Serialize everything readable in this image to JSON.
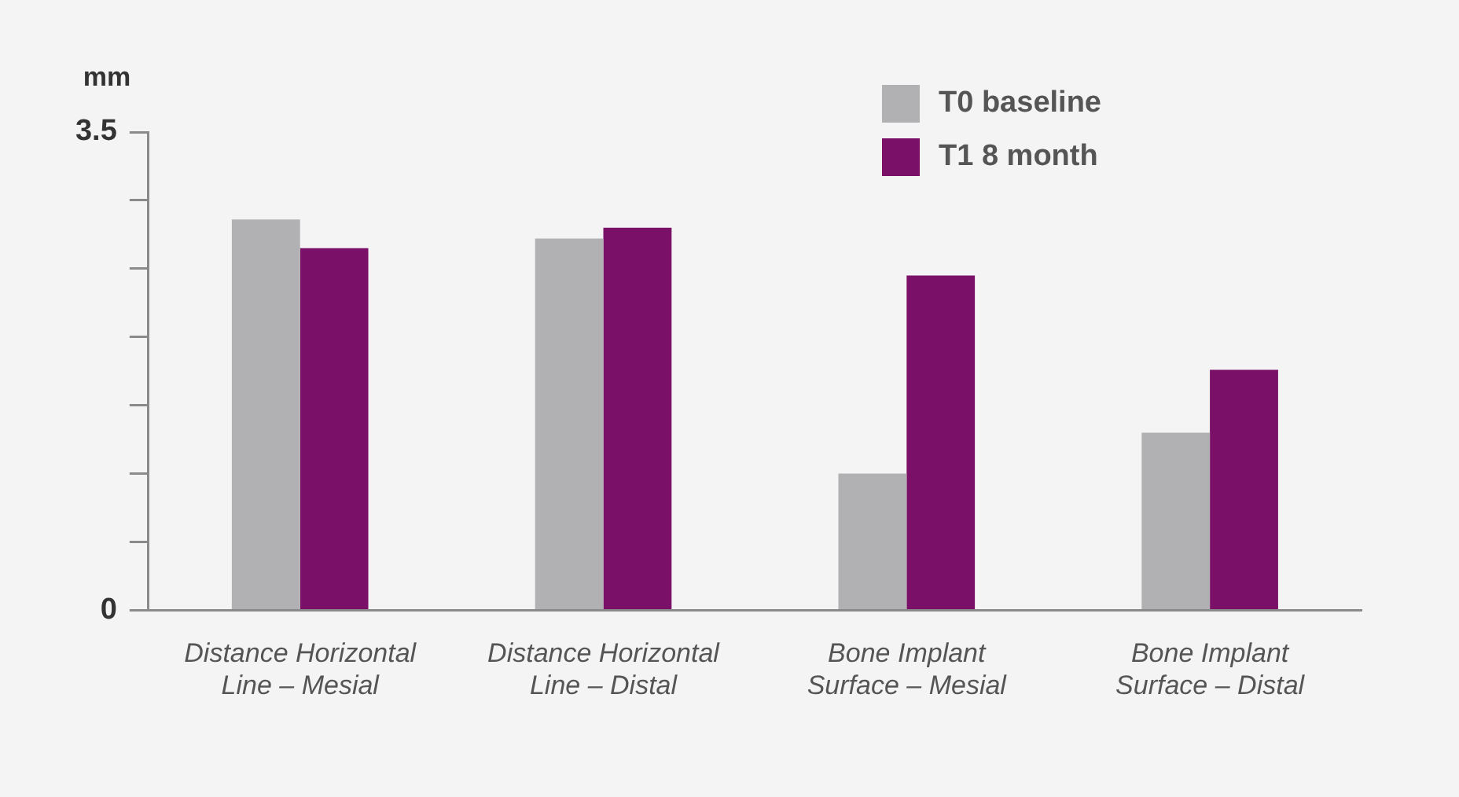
{
  "chart_data": {
    "type": "bar",
    "ylabel": "mm",
    "categories": [
      "Distance Horizontal Line – Mesial",
      "Distance Horizontal Line – Distal",
      "Bone Implant Surface – Mesial",
      "Bone Implant Surface – Distal"
    ],
    "series": [
      {
        "name": "T0 baseline",
        "color": "#b1b1b3",
        "values": [
          2.86,
          2.72,
          1.0,
          1.3
        ]
      },
      {
        "name": "T1 8 month",
        "color": "#7a1068",
        "values": [
          2.65,
          2.8,
          2.45,
          1.76
        ]
      }
    ],
    "ylim": [
      0,
      3.5
    ],
    "yticks": [
      0,
      {
        "value": 0.5,
        "label": null
      },
      {
        "value": 1,
        "label": null
      },
      {
        "value": 1.5,
        "label": null
      },
      {
        "value": 2,
        "label": null
      },
      {
        "value": 2.5,
        "label": null
      },
      {
        "value": 3,
        "label": null
      },
      3.5
    ],
    "grid": false,
    "legend": "top right"
  }
}
